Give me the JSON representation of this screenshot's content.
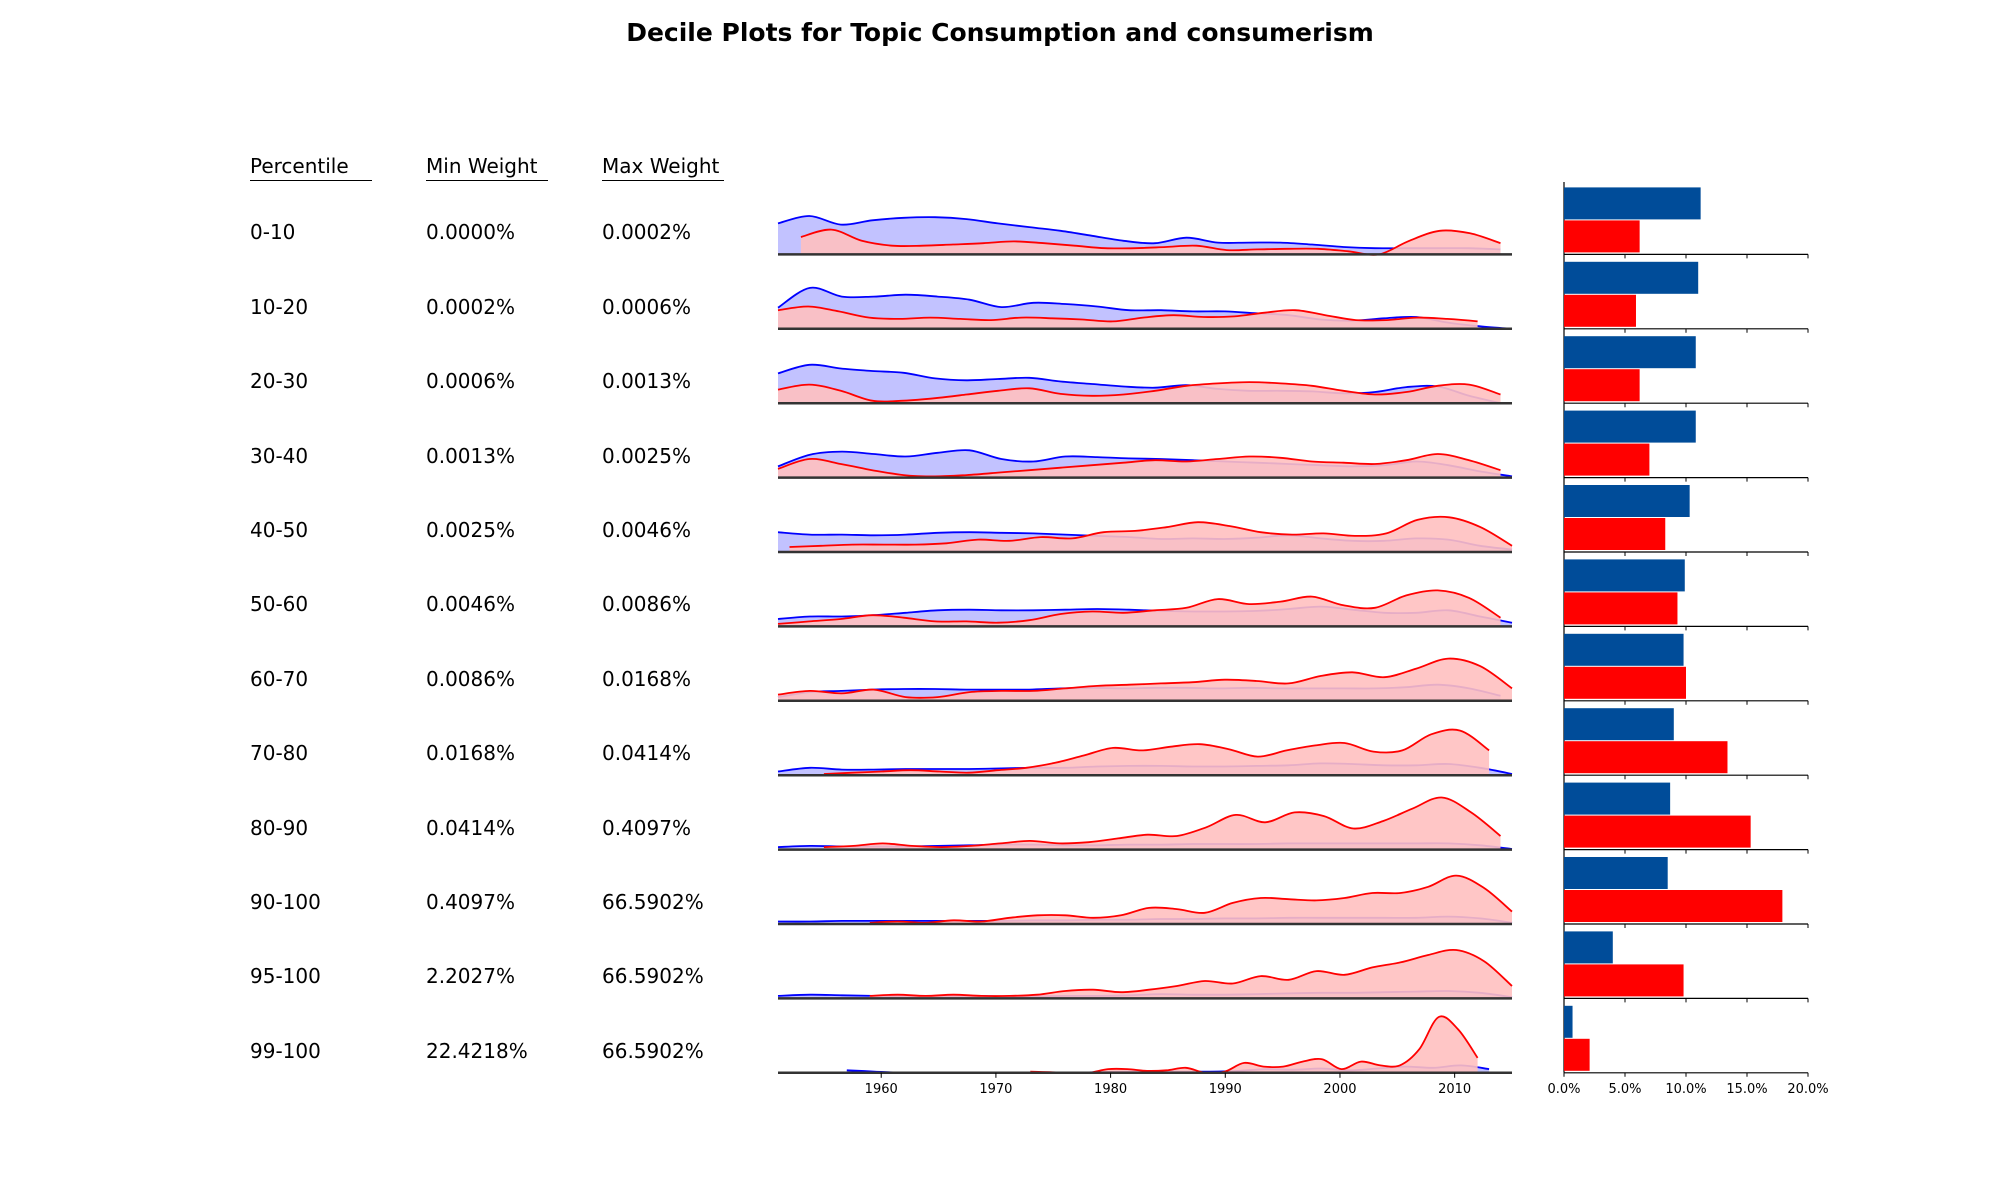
{
  "chart_data": {
    "type": "table",
    "title": "Decile Plots for Topic Consumption and consumerism",
    "columns": [
      "Percentile",
      "Min Weight",
      "Max Weight"
    ],
    "rows": [
      {
        "percentile": "0-10",
        "min": "0.0000%",
        "max": "0.0002%",
        "blue_share": 11.2,
        "red_share": 6.2
      },
      {
        "percentile": "10-20",
        "min": "0.0002%",
        "max": "0.0006%",
        "blue_share": 11.0,
        "red_share": 5.9
      },
      {
        "percentile": "20-30",
        "min": "0.0006%",
        "max": "0.0013%",
        "blue_share": 10.8,
        "red_share": 6.2
      },
      {
        "percentile": "30-40",
        "min": "0.0013%",
        "max": "0.0025%",
        "blue_share": 10.8,
        "red_share": 7.0
      },
      {
        "percentile": "40-50",
        "min": "0.0025%",
        "max": "0.0046%",
        "blue_share": 10.3,
        "red_share": 8.3
      },
      {
        "percentile": "50-60",
        "min": "0.0046%",
        "max": "0.0086%",
        "blue_share": 9.9,
        "red_share": 9.3
      },
      {
        "percentile": "60-70",
        "min": "0.0086%",
        "max": "0.0168%",
        "blue_share": 9.8,
        "red_share": 10.0
      },
      {
        "percentile": "70-80",
        "min": "0.0168%",
        "max": "0.0414%",
        "blue_share": 9.0,
        "red_share": 13.4
      },
      {
        "percentile": "80-90",
        "min": "0.0414%",
        "max": "0.4097%",
        "blue_share": 8.7,
        "red_share": 15.3
      },
      {
        "percentile": "90-100",
        "min": "0.4097%",
        "max": "66.5902%",
        "blue_share": 8.5,
        "red_share": 17.9
      },
      {
        "percentile": "95-100",
        "min": "2.2027%",
        "max": "66.5902%",
        "blue_share": 4.0,
        "red_share": 9.8
      },
      {
        "percentile": "99-100",
        "min": "22.4218%",
        "max": "66.5902%",
        "blue_share": 0.7,
        "red_share": 2.1
      }
    ],
    "density_x_ticks": [
      1960,
      1970,
      1980,
      1990,
      2000,
      2010
    ],
    "density_xlim": [
      1951,
      2015
    ],
    "density_series": [
      {
        "color": "blue",
        "fill": "#bbbbff",
        "rows": [
          {
            "start": 1951,
            "end": 2014,
            "y": [
              0.5,
              0.62,
              0.48,
              0.55,
              0.59,
              0.6,
              0.57,
              0.5,
              0.44,
              0.38,
              0.3,
              0.22,
              0.18,
              0.27,
              0.19,
              0.19,
              0.19,
              0.16,
              0.12,
              0.1,
              0.1,
              0.1,
              0.1,
              0.08
            ]
          },
          {
            "start": 1951,
            "end": 2015,
            "y": [
              0.34,
              0.66,
              0.52,
              0.52,
              0.55,
              0.52,
              0.47,
              0.35,
              0.42,
              0.4,
              0.36,
              0.3,
              0.3,
              0.28,
              0.28,
              0.25,
              0.22,
              0.15,
              0.13,
              0.17,
              0.19,
              0.1,
              0.04,
              0.0
            ]
          },
          {
            "start": 1951,
            "end": 2014,
            "y": [
              0.48,
              0.62,
              0.56,
              0.52,
              0.49,
              0.4,
              0.37,
              0.39,
              0.41,
              0.35,
              0.31,
              0.27,
              0.25,
              0.29,
              0.23,
              0.2,
              0.2,
              0.19,
              0.16,
              0.18,
              0.26,
              0.27,
              0.12,
              0.0
            ]
          },
          {
            "start": 1951,
            "end": 2015,
            "y": [
              0.18,
              0.37,
              0.42,
              0.38,
              0.34,
              0.4,
              0.44,
              0.3,
              0.26,
              0.34,
              0.33,
              0.31,
              0.3,
              0.28,
              0.26,
              0.24,
              0.22,
              0.2,
              0.18,
              0.2,
              0.26,
              0.2,
              0.1,
              0.02
            ]
          },
          {
            "start": 1951,
            "end": 2015,
            "y": [
              0.32,
              0.28,
              0.28,
              0.27,
              0.28,
              0.31,
              0.32,
              0.31,
              0.3,
              0.28,
              0.26,
              0.24,
              0.21,
              0.22,
              0.21,
              0.23,
              0.27,
              0.22,
              0.18,
              0.18,
              0.22,
              0.2,
              0.1,
              0.04
            ]
          },
          {
            "start": 1951,
            "end": 2015,
            "y": [
              0.12,
              0.16,
              0.16,
              0.18,
              0.22,
              0.26,
              0.27,
              0.26,
              0.26,
              0.27,
              0.28,
              0.27,
              0.25,
              0.24,
              0.24,
              0.25,
              0.28,
              0.32,
              0.27,
              0.22,
              0.22,
              0.26,
              0.16,
              0.06
            ]
          },
          {
            "start": 1951,
            "end": 2014,
            "y": [
              0.06,
              0.14,
              0.16,
              0.18,
              0.19,
              0.19,
              0.18,
              0.18,
              0.18,
              0.2,
              0.21,
              0.2,
              0.21,
              0.21,
              0.2,
              0.21,
              0.2,
              0.2,
              0.2,
              0.2,
              0.22,
              0.26,
              0.2,
              0.08
            ]
          },
          {
            "start": 1951,
            "end": 2015,
            "y": [
              0.06,
              0.12,
              0.09,
              0.09,
              0.1,
              0.1,
              0.1,
              0.11,
              0.12,
              0.12,
              0.14,
              0.15,
              0.15,
              0.14,
              0.14,
              0.15,
              0.16,
              0.19,
              0.18,
              0.16,
              0.16,
              0.18,
              0.12,
              0.02
            ]
          },
          {
            "start": 1951,
            "end": 2015,
            "y": [
              0.04,
              0.06,
              0.05,
              0.05,
              0.05,
              0.06,
              0.07,
              0.08,
              0.08,
              0.07,
              0.07,
              0.08,
              0.08,
              0.09,
              0.09,
              0.09,
              0.1,
              0.1,
              0.1,
              0.1,
              0.1,
              0.1,
              0.07,
              0.01
            ]
          },
          {
            "start": 1951,
            "end": 2015,
            "y": [
              0.04,
              0.04,
              0.05,
              0.05,
              0.05,
              0.05,
              0.05,
              0.05,
              0.06,
              0.06,
              0.07,
              0.07,
              0.08,
              0.08,
              0.09,
              0.09,
              0.1,
              0.1,
              0.1,
              0.1,
              0.1,
              0.12,
              0.09,
              0.02
            ]
          },
          {
            "start": 1951,
            "end": 2015,
            "y": [
              0.04,
              0.06,
              0.05,
              0.04,
              0.04,
              0.04,
              0.04,
              0.03,
              0.03,
              0.04,
              0.04,
              0.05,
              0.07,
              0.06,
              0.06,
              0.07,
              0.08,
              0.09,
              0.09,
              0.1,
              0.11,
              0.12,
              0.09,
              0.02
            ]
          },
          {
            "start": 1957,
            "end": 2013,
            "y": [
              0.04,
              0.02,
              0.0,
              0.0,
              0.0,
              0.0,
              0.0,
              0.0,
              0.0,
              0.01,
              0.02,
              0.03,
              0.02,
              0.02,
              0.03,
              0.06,
              0.05,
              0.07,
              0.04,
              0.07,
              0.1,
              0.08,
              0.12,
              0.06
            ]
          }
        ]
      },
      {
        "color": "red",
        "fill": "#ffc0c0",
        "rows": [
          {
            "start": 1953,
            "end": 2014,
            "y": [
              0.28,
              0.4,
              0.22,
              0.14,
              0.14,
              0.16,
              0.18,
              0.21,
              0.18,
              0.14,
              0.1,
              0.1,
              0.12,
              0.14,
              0.07,
              0.08,
              0.09,
              0.09,
              0.05,
              0.0,
              0.22,
              0.38,
              0.34,
              0.18
            ]
          },
          {
            "start": 1951,
            "end": 2012,
            "y": [
              0.3,
              0.36,
              0.28,
              0.18,
              0.16,
              0.18,
              0.16,
              0.14,
              0.18,
              0.17,
              0.15,
              0.12,
              0.18,
              0.22,
              0.19,
              0.2,
              0.26,
              0.3,
              0.22,
              0.14,
              0.14,
              0.18,
              0.16,
              0.12
            ]
          },
          {
            "start": 1951,
            "end": 2014,
            "y": [
              0.22,
              0.3,
              0.2,
              0.04,
              0.04,
              0.08,
              0.14,
              0.2,
              0.24,
              0.15,
              0.12,
              0.14,
              0.2,
              0.28,
              0.32,
              0.34,
              0.32,
              0.28,
              0.2,
              0.14,
              0.18,
              0.28,
              0.3,
              0.14
            ]
          },
          {
            "start": 1951,
            "end": 2014,
            "y": [
              0.14,
              0.3,
              0.22,
              0.12,
              0.04,
              0.02,
              0.04,
              0.08,
              0.12,
              0.16,
              0.2,
              0.24,
              0.28,
              0.26,
              0.3,
              0.34,
              0.32,
              0.26,
              0.24,
              0.22,
              0.28,
              0.38,
              0.28,
              0.12
            ]
          },
          {
            "start": 1952,
            "end": 2015,
            "y": [
              0.08,
              0.1,
              0.12,
              0.12,
              0.12,
              0.14,
              0.2,
              0.18,
              0.24,
              0.22,
              0.32,
              0.34,
              0.4,
              0.48,
              0.42,
              0.32,
              0.28,
              0.3,
              0.26,
              0.3,
              0.52,
              0.56,
              0.4,
              0.1
            ]
          },
          {
            "start": 1951,
            "end": 2014,
            "y": [
              0.04,
              0.08,
              0.12,
              0.18,
              0.14,
              0.08,
              0.08,
              0.06,
              0.1,
              0.2,
              0.24,
              0.22,
              0.26,
              0.3,
              0.44,
              0.36,
              0.4,
              0.48,
              0.34,
              0.3,
              0.5,
              0.58,
              0.46,
              0.14
            ]
          },
          {
            "start": 1951,
            "end": 2015,
            "y": [
              0.1,
              0.16,
              0.12,
              0.18,
              0.06,
              0.06,
              0.14,
              0.16,
              0.16,
              0.2,
              0.24,
              0.26,
              0.28,
              0.3,
              0.34,
              0.32,
              0.28,
              0.4,
              0.46,
              0.38,
              0.52,
              0.68,
              0.56,
              0.2
            ]
          },
          {
            "start": 1955,
            "end": 2013,
            "y": [
              0.02,
              0.04,
              0.06,
              0.08,
              0.06,
              0.04,
              0.08,
              0.12,
              0.2,
              0.32,
              0.44,
              0.4,
              0.46,
              0.5,
              0.42,
              0.3,
              0.4,
              0.48,
              0.52,
              0.38,
              0.4,
              0.66,
              0.72,
              0.4
            ]
          },
          {
            "start": 1955,
            "end": 2014,
            "y": [
              0.04,
              0.06,
              0.1,
              0.06,
              0.04,
              0.06,
              0.1,
              0.14,
              0.1,
              0.12,
              0.18,
              0.24,
              0.22,
              0.36,
              0.56,
              0.44,
              0.6,
              0.54,
              0.34,
              0.46,
              0.66,
              0.84,
              0.6,
              0.22
            ]
          },
          {
            "start": 1959,
            "end": 2015,
            "y": [
              0.02,
              0.04,
              0.02,
              0.06,
              0.04,
              0.1,
              0.14,
              0.14,
              0.1,
              0.14,
              0.26,
              0.24,
              0.18,
              0.34,
              0.42,
              0.4,
              0.38,
              0.42,
              0.5,
              0.5,
              0.6,
              0.78,
              0.58,
              0.2
            ]
          },
          {
            "start": 1959,
            "end": 2015,
            "y": [
              0.04,
              0.06,
              0.04,
              0.06,
              0.04,
              0.04,
              0.06,
              0.12,
              0.14,
              0.1,
              0.14,
              0.2,
              0.28,
              0.24,
              0.36,
              0.3,
              0.44,
              0.38,
              0.5,
              0.58,
              0.7,
              0.78,
              0.6,
              0.2
            ]
          },
          {
            "start": 1973,
            "end": 2012,
            "y": [
              0.02,
              0.01,
              0.0,
              0.0,
              0.06,
              0.06,
              0.03,
              0.04,
              0.08,
              0.0,
              0.02,
              0.16,
              0.1,
              0.1,
              0.18,
              0.22,
              0.06,
              0.18,
              0.12,
              0.12,
              0.38,
              0.9,
              0.7,
              0.24
            ]
          }
        ]
      }
    ],
    "bar_x_ticks": [
      "0.0%",
      "5.0%",
      "10.0%",
      "15.0%",
      "20.0%"
    ],
    "bar_xlim": [
      0,
      20
    ],
    "bar_colors": {
      "blue": "#004c99",
      "red": "#ff0000"
    }
  }
}
